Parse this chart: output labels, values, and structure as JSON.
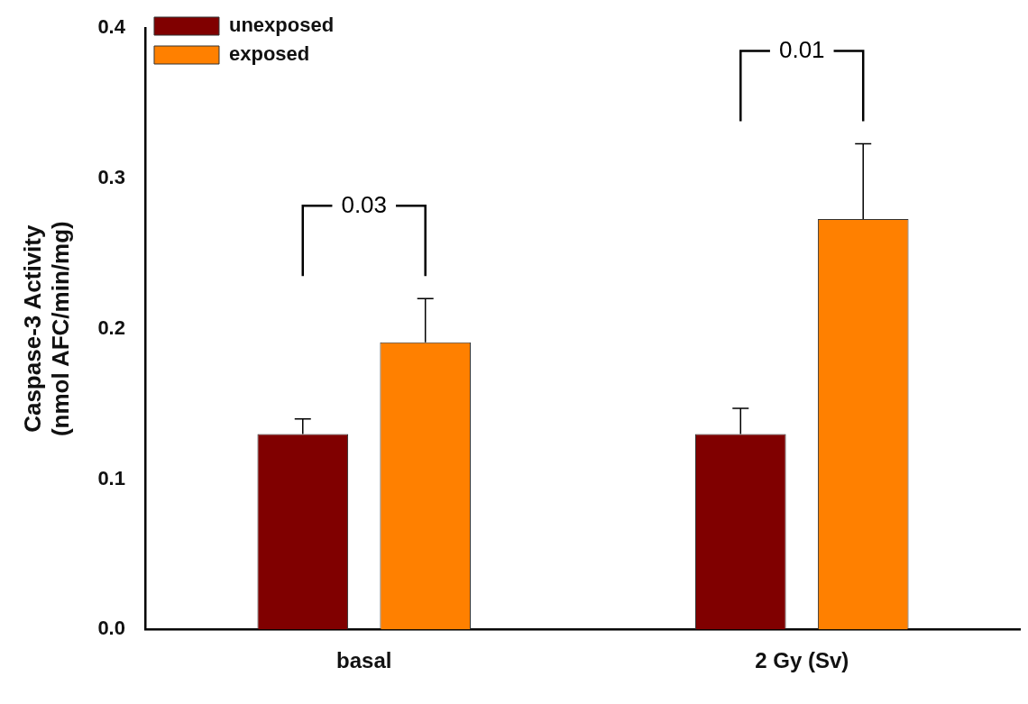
{
  "chart_data": {
    "type": "bar",
    "ylabel": "Caspase-3 Activity\n(nmol AFC/min/mg)",
    "categories": [
      "basal",
      "2 Gy (Sv)"
    ],
    "series": [
      {
        "name": "unexposed",
        "color": "#800000",
        "values": [
          0.13,
          0.13
        ],
        "errors": [
          [
            0.13,
            0.14
          ],
          [
            0.13,
            0.147
          ]
        ]
      },
      {
        "name": "exposed",
        "color": "#ff8000",
        "values": [
          0.191,
          0.273
        ],
        "errors": [
          [
            0.191,
            0.22
          ],
          [
            0.273,
            0.323
          ]
        ]
      }
    ],
    "ylim": [
      0,
      0.4
    ],
    "yticks": [
      {
        "value": 0,
        "label": "0.0"
      },
      0.1,
      0.2,
      0.3,
      0.4
    ],
    "legend": "top left",
    "annotations": [
      "0.03",
      "0.01"
    ]
  }
}
